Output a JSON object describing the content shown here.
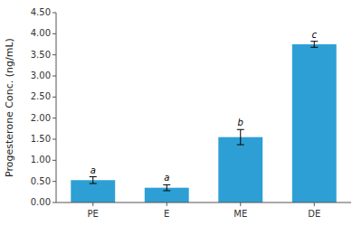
{
  "chart_data": {
    "type": "bar",
    "ylabel": "Progesterone Conc. (ng/mL)",
    "categories": [
      "PE",
      "E",
      "ME",
      "DE"
    ],
    "values": [
      0.53,
      0.35,
      1.55,
      3.75
    ],
    "errors": [
      0.08,
      0.07,
      0.18,
      0.07
    ],
    "annotations": [
      "a",
      "a",
      "b",
      "c"
    ],
    "color": "#2E9FD4",
    "ylim": [
      0.0,
      4.5
    ],
    "yticks": [
      {
        "value": 0.0,
        "label": "0.00"
      },
      {
        "value": 0.5,
        "label": "0.50"
      },
      {
        "value": 1.0,
        "label": "1.00"
      },
      {
        "value": 1.5,
        "label": "1.50"
      },
      {
        "value": 2.0,
        "label": "2.00"
      },
      {
        "value": 2.5,
        "label": "2.50"
      },
      {
        "value": 3.0,
        "label": "3.00"
      },
      {
        "value": 3.5,
        "label": "3.50"
      },
      {
        "value": 4.0,
        "label": "4.00"
      },
      {
        "value": 4.5,
        "label": "4.50"
      }
    ],
    "grid": false
  }
}
